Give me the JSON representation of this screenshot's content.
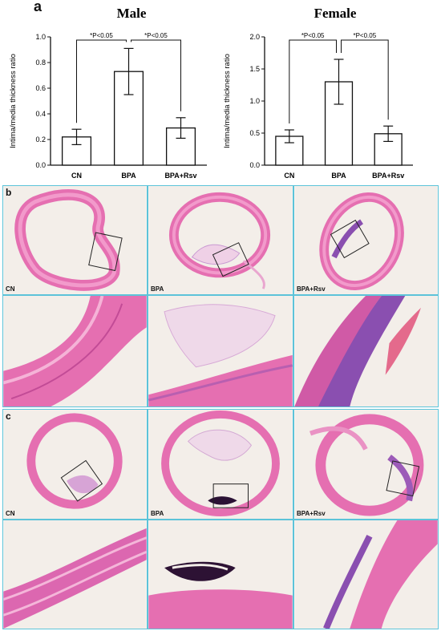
{
  "panel_labels": {
    "a": "a",
    "b": "b",
    "c": "c"
  },
  "chart_data": [
    {
      "type": "bar",
      "title": "Male",
      "ylabel": "Intima/media thickness ratio",
      "xlabel": "",
      "categories": [
        "CN",
        "BPA",
        "BPA+Rsv"
      ],
      "values": [
        0.22,
        0.73,
        0.29
      ],
      "errors": [
        0.06,
        0.18,
        0.08
      ],
      "ylim": [
        0,
        1.0
      ],
      "yticks": [
        "0.0",
        "0.2",
        "0.4",
        "0.6",
        "0.8",
        "1.0"
      ],
      "significance": [
        {
          "from": 0,
          "to": 1,
          "label": "*P<0.05"
        },
        {
          "from": 1,
          "to": 2,
          "label": "*P<0.05"
        }
      ]
    },
    {
      "type": "bar",
      "title": "Female",
      "ylabel": "Intima/media thickness ratio",
      "xlabel": "",
      "categories": [
        "CN",
        "BPA",
        "BPA+Rsv"
      ],
      "values": [
        0.45,
        1.3,
        0.49
      ],
      "errors": [
        0.1,
        0.35,
        0.12
      ],
      "ylim": [
        0,
        2.0
      ],
      "yticks": [
        "0.0",
        "0.5",
        "1.0",
        "1.5",
        "2.0"
      ],
      "significance": [
        {
          "from": 0,
          "to": 1,
          "label": "*P<0.05"
        },
        {
          "from": 1,
          "to": 2,
          "label": "*P<0.05"
        }
      ]
    }
  ],
  "micrographs": {
    "b": {
      "labels": [
        "CN",
        "BPA",
        "BPA+Rsv"
      ]
    },
    "c": {
      "labels": [
        "CN",
        "BPA",
        "BPA+Rsv"
      ]
    }
  },
  "colors": {
    "tile_border": "#5cc3d9",
    "stain_pink": "#e87bb8",
    "stain_purple": "#8a4fb0",
    "background": "#f4eeea"
  }
}
